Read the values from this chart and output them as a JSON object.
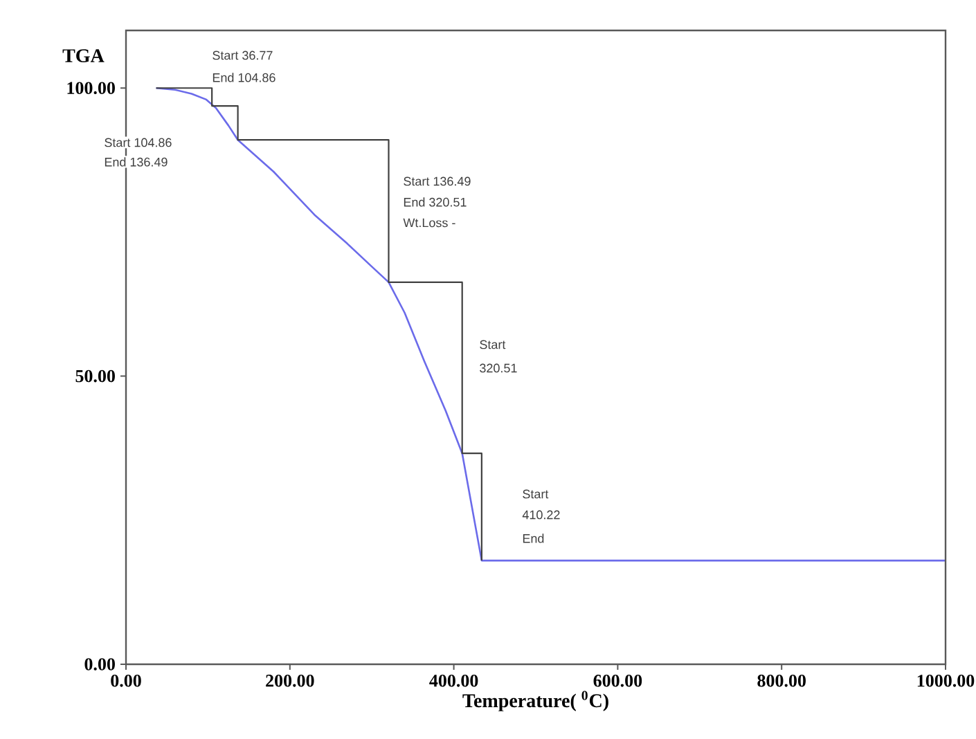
{
  "chart_data": {
    "type": "line",
    "ylabel": "TGA",
    "xlabel": "Temperature( $^{0}$C)",
    "xlim": [
      0,
      1000
    ],
    "ylim": [
      0,
      110
    ],
    "xticks": [
      {
        "value": 0,
        "label": "0.00"
      },
      {
        "value": 200,
        "label": "200.00"
      },
      {
        "value": 400,
        "label": "400.00"
      },
      {
        "value": 600,
        "label": "600.00"
      },
      {
        "value": 800,
        "label": "800.00"
      },
      {
        "value": 1000,
        "label": "1000.00"
      }
    ],
    "yticks": [
      {
        "value": 0,
        "label": "0.00"
      },
      {
        "value": 50,
        "label": "50.00"
      },
      {
        "value": 100,
        "label": "100.00"
      }
    ],
    "series": [
      {
        "color": "#6b6bea",
        "x": [
          36.77,
          60,
          80,
          98,
          110,
          125,
          136.49,
          180,
          230,
          270,
          300,
          320.51,
          340,
          364,
          390,
          410.22,
          434,
          1000
        ],
        "values": [
          100,
          99.7,
          99,
          98,
          96.5,
          93.5,
          91,
          85.5,
          78,
          73,
          69,
          66.3,
          61,
          52.6,
          44,
          36.6,
          18,
          18
        ]
      },
      {
        "type": "step",
        "color": "#404040",
        "x": [
          36.77,
          104.86,
          136.49,
          320.51,
          410.22,
          434
        ],
        "values": [
          100,
          96.9,
          91,
          66.3,
          36.6,
          18
        ]
      }
    ],
    "annotations": [
      "Start 36.77",
      "End 104.86",
      "Start 104.86",
      "End 136.49",
      "Start 136.49",
      "End 320.51",
      "Wt.Loss -",
      "Start",
      "320.51",
      "Start",
      "410.22",
      "End"
    ]
  }
}
